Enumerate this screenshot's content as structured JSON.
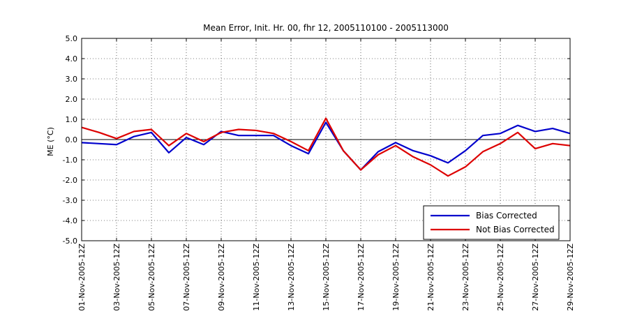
{
  "chart_data": {
    "type": "line",
    "title": "Mean Error, Init. Hr. 00, fhr 12, 2005110100 - 2005113000",
    "xlabel": "",
    "ylabel": "ME (°C)",
    "ylim": [
      -5,
      5
    ],
    "yticks": [
      "-5.0",
      "-4.0",
      "-3.0",
      "-2.0",
      "-1.0",
      "0.0",
      "1.0",
      "2.0",
      "3.0",
      "4.0",
      "5.0"
    ],
    "x": [
      "01-Nov-2005-12Z",
      "02-Nov-2005-12Z",
      "03-Nov-2005-12Z",
      "04-Nov-2005-12Z",
      "05-Nov-2005-12Z",
      "06-Nov-2005-12Z",
      "07-Nov-2005-12Z",
      "08-Nov-2005-12Z",
      "09-Nov-2005-12Z",
      "10-Nov-2005-12Z",
      "11-Nov-2005-12Z",
      "12-Nov-2005-12Z",
      "13-Nov-2005-12Z",
      "14-Nov-2005-12Z",
      "15-Nov-2005-12Z",
      "16-Nov-2005-12Z",
      "17-Nov-2005-12Z",
      "18-Nov-2005-12Z",
      "19-Nov-2005-12Z",
      "20-Nov-2005-12Z",
      "21-Nov-2005-12Z",
      "22-Nov-2005-12Z",
      "23-Nov-2005-12Z",
      "24-Nov-2005-12Z",
      "25-Nov-2005-12Z",
      "26-Nov-2005-12Z",
      "27-Nov-2005-12Z",
      "28-Nov-2005-12Z",
      "29-Nov-2005-12Z"
    ],
    "xtick_labels": [
      "01-Nov-2005-12Z",
      "03-Nov-2005-12Z",
      "05-Nov-2005-12Z",
      "07-Nov-2005-12Z",
      "09-Nov-2005-12Z",
      "11-Nov-2005-12Z",
      "13-Nov-2005-12Z",
      "15-Nov-2005-12Z",
      "17-Nov-2005-12Z",
      "19-Nov-2005-12Z",
      "21-Nov-2005-12Z",
      "23-Nov-2005-12Z",
      "25-Nov-2005-12Z",
      "27-Nov-2005-12Z",
      "29-Nov-2005-12Z"
    ],
    "grid": true,
    "zero_line": true,
    "legend_position": "bottom-right",
    "series": [
      {
        "name": "Bias Corrected",
        "color": "#0000cc",
        "values": [
          -0.15,
          -0.2,
          -0.25,
          0.15,
          0.35,
          -0.65,
          0.1,
          -0.25,
          0.4,
          0.2,
          0.2,
          0.2,
          -0.3,
          -0.7,
          0.85,
          -0.55,
          -1.5,
          -0.6,
          -0.15,
          -0.55,
          -0.8,
          -1.15,
          -0.55,
          0.2,
          0.3,
          0.7,
          0.4,
          0.55,
          0.3
        ]
      },
      {
        "name": "Not Bias Corrected",
        "color": "#dd0000",
        "values": [
          0.6,
          0.35,
          0.05,
          0.4,
          0.5,
          -0.3,
          0.3,
          -0.1,
          0.35,
          0.5,
          0.45,
          0.3,
          -0.1,
          -0.55,
          1.05,
          -0.55,
          -1.5,
          -0.75,
          -0.3,
          -0.85,
          -1.25,
          -1.8,
          -1.35,
          -0.6,
          -0.2,
          0.35,
          -0.45,
          -0.2,
          -0.3
        ]
      }
    ]
  }
}
